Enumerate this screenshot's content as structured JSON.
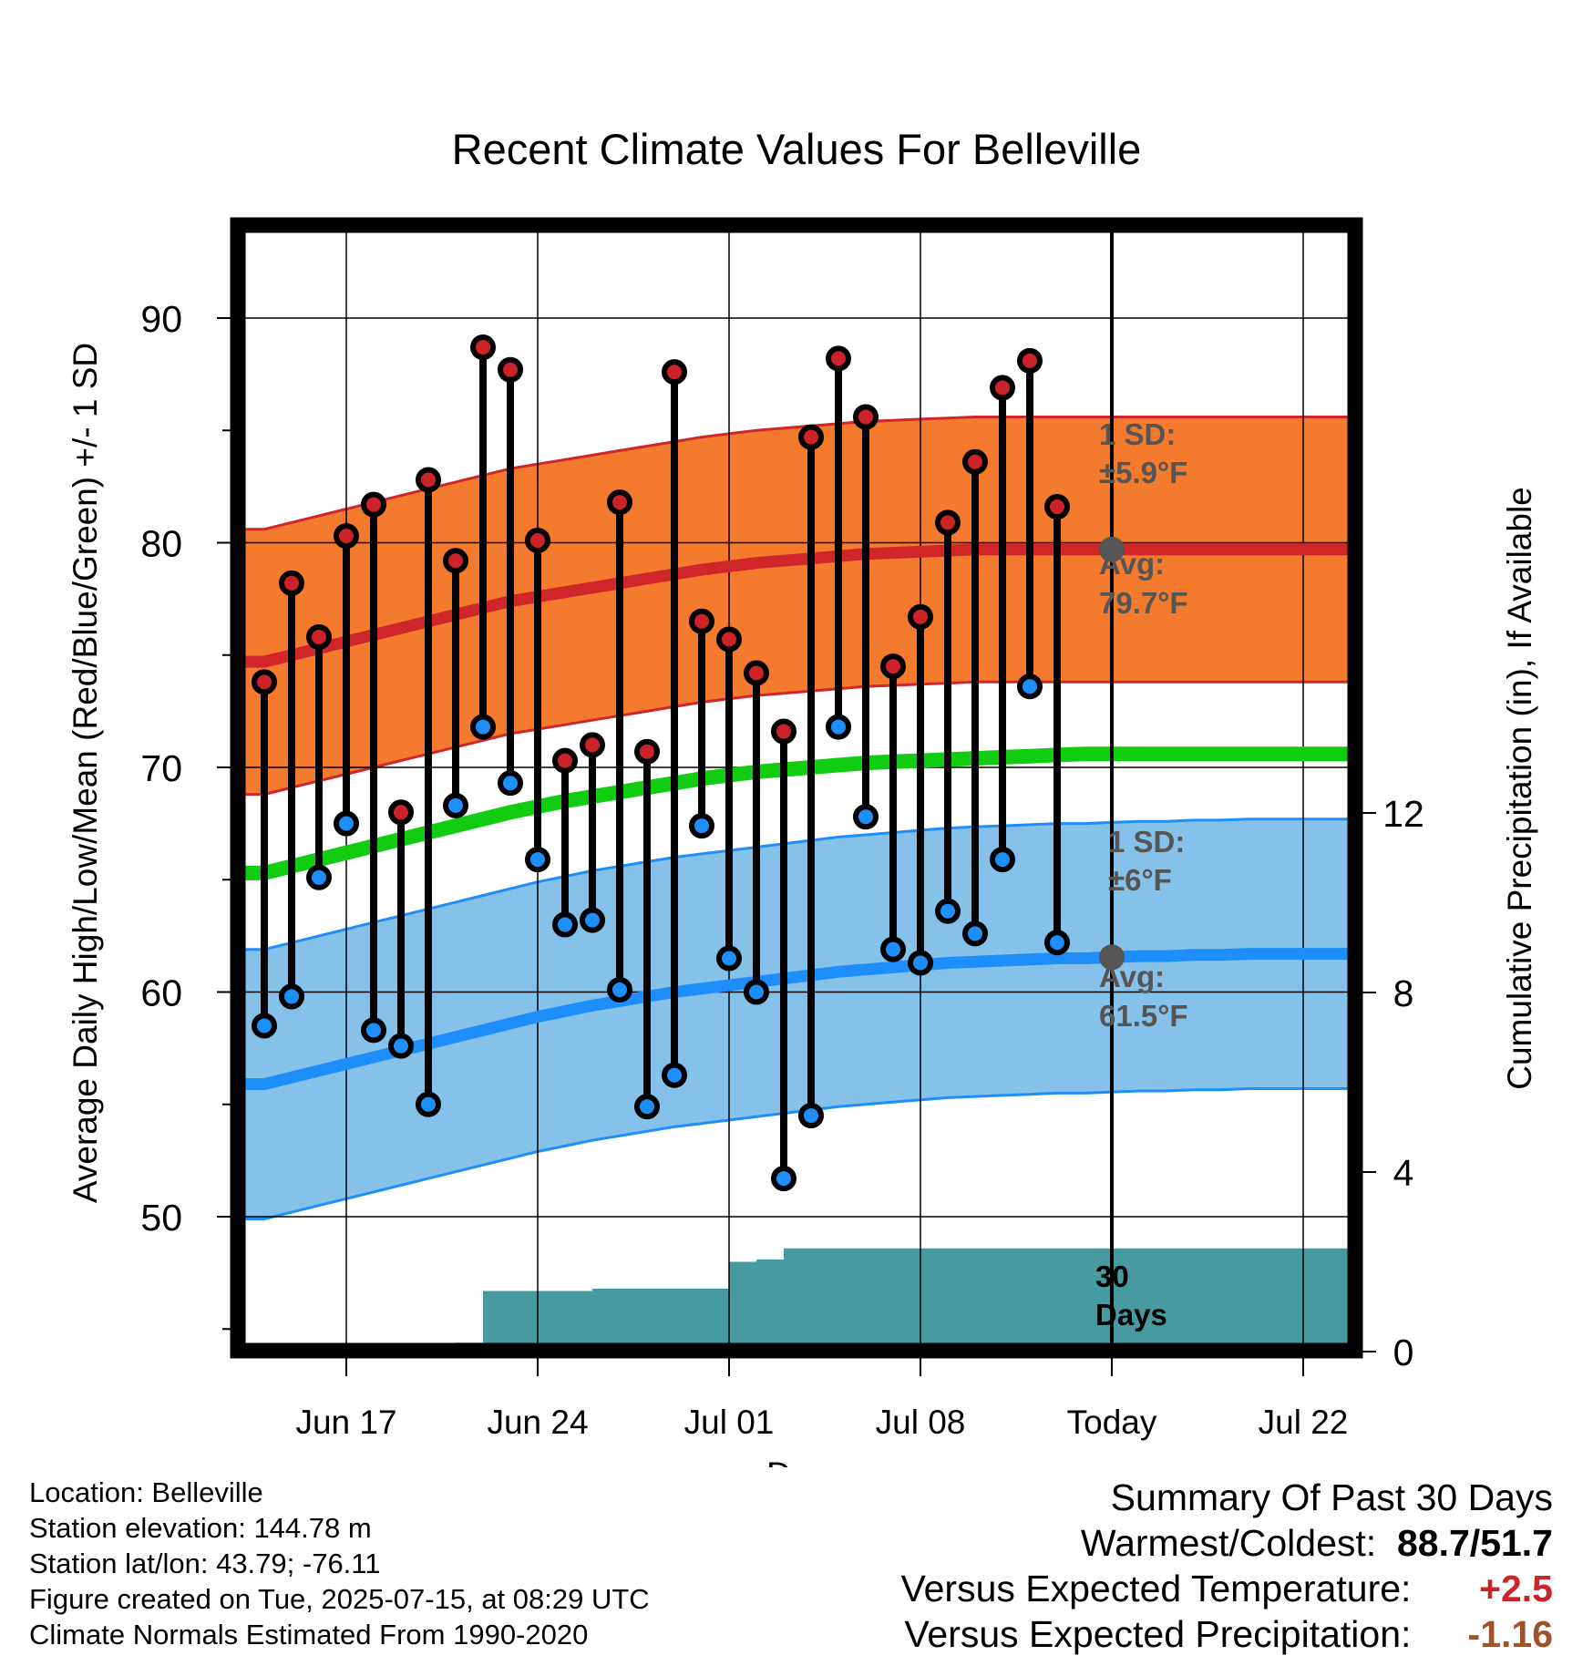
{
  "chart_data": {
    "type": "line",
    "title": "Recent Climate Values For Belleville",
    "xlabel": "Day",
    "ylabel": "Average Daily High/Low/Mean (Red/Blue/Green) +/- 1 SD",
    "y2label": "Cumulative Precipitation (in), If Available",
    "xticks": [
      "Jun 17",
      "Jun 24",
      "Jul 01",
      "Jul 08",
      "Today",
      "Jul 22"
    ],
    "yticks": [
      50,
      60,
      70,
      80,
      90
    ],
    "y2ticks": [
      0,
      4,
      8,
      12
    ],
    "ylim": [
      44,
      94
    ],
    "y2lim": [
      0,
      24
    ],
    "grid": true,
    "colors": {
      "high_band": "#f47a2e",
      "high_line": "#d0262a",
      "high_dot": "#cc2229",
      "low_band": "#85c1e9",
      "low_line": "#1e8ffa",
      "low_dot": "#1e8ffa",
      "mean_line": "#11cc11",
      "precip": "#479aa1",
      "marker": "#555555"
    },
    "days": [
      "Jun 14",
      "Jun 15",
      "Jun 16",
      "Jun 17",
      "Jun 18",
      "Jun 19",
      "Jun 20",
      "Jun 21",
      "Jun 22",
      "Jun 23",
      "Jun 24",
      "Jun 25",
      "Jun 26",
      "Jun 27",
      "Jun 28",
      "Jun 29",
      "Jun 30",
      "Jul 01",
      "Jul 02",
      "Jul 03",
      "Jul 04",
      "Jul 05",
      "Jul 06",
      "Jul 07",
      "Jul 08",
      "Jul 09",
      "Jul 10",
      "Jul 11",
      "Jul 12",
      "Jul 13",
      "Jul 14",
      "Jul 15",
      "Jul 16",
      "Jul 17",
      "Jul 18",
      "Jul 19",
      "Jul 20",
      "Jul 21",
      "Jul 22",
      "Jul 23",
      "Jul 24"
    ],
    "observed": {
      "start": "Jun 14",
      "high": [
        73.8,
        78.2,
        75.8,
        80.3,
        81.7,
        68.0,
        82.8,
        79.2,
        88.7,
        87.7,
        80.1,
        70.3,
        71.0,
        81.8,
        70.7,
        87.6,
        76.5,
        75.7,
        74.2,
        71.6,
        84.7,
        88.2,
        85.6,
        74.5,
        76.7,
        80.9,
        83.6,
        86.9,
        88.1,
        81.6
      ],
      "low": [
        58.5,
        59.8,
        65.1,
        67.5,
        58.3,
        57.6,
        55.0,
        68.3,
        71.8,
        69.3,
        65.9,
        63.0,
        63.2,
        60.1,
        54.9,
        56.3,
        67.4,
        61.5,
        60.0,
        51.7,
        54.5,
        71.8,
        67.8,
        61.9,
        61.3,
        63.6,
        62.6,
        65.9,
        73.6,
        62.2
      ]
    },
    "normals": {
      "high_avg": [
        74.7,
        75.0,
        75.3,
        75.6,
        75.9,
        76.2,
        76.5,
        76.8,
        77.1,
        77.4,
        77.6,
        77.8,
        78.0,
        78.2,
        78.4,
        78.6,
        78.8,
        78.95,
        79.1,
        79.2,
        79.3,
        79.4,
        79.5,
        79.55,
        79.6,
        79.65,
        79.7,
        79.7,
        79.7,
        79.7,
        79.7,
        79.7,
        79.7,
        79.7,
        79.7,
        79.7,
        79.7,
        79.7,
        79.7,
        79.7,
        79.7
      ],
      "high_sd": 5.9,
      "low_avg": [
        55.9,
        56.2,
        56.5,
        56.8,
        57.1,
        57.4,
        57.7,
        58.0,
        58.3,
        58.6,
        58.9,
        59.15,
        59.4,
        59.6,
        59.8,
        60.0,
        60.15,
        60.3,
        60.45,
        60.6,
        60.75,
        60.9,
        61.0,
        61.1,
        61.2,
        61.3,
        61.35,
        61.4,
        61.45,
        61.5,
        61.5,
        61.55,
        61.6,
        61.6,
        61.65,
        61.65,
        61.7,
        61.7,
        61.7,
        61.7,
        61.7
      ],
      "low_sd": 6.0,
      "mean_avg": [
        65.3,
        65.6,
        65.9,
        66.2,
        66.5,
        66.8,
        67.1,
        67.4,
        67.7,
        68.0,
        68.25,
        68.5,
        68.7,
        68.9,
        69.1,
        69.3,
        69.5,
        69.65,
        69.8,
        69.9,
        70.0,
        70.1,
        70.2,
        70.25,
        70.3,
        70.35,
        70.4,
        70.45,
        70.5,
        70.55,
        70.6,
        70.6,
        70.6,
        70.6,
        70.6,
        70.6,
        70.6,
        70.6,
        70.6,
        70.6,
        70.6
      ]
    },
    "precipitation": {
      "days": [
        "Jun 20",
        "Jun 21",
        "Jun 22",
        "Jun 26",
        "Jun 30",
        "Jul 01",
        "Jul 02",
        "Jul 03",
        "Jul 15",
        "Jul 24"
      ],
      "cumulative_in": [
        0.0,
        0.2,
        1.35,
        1.4,
        1.4,
        2.0,
        2.05,
        2.3,
        2.3,
        2.3
      ]
    },
    "annotations": {
      "high_sd_label": "1 SD:",
      "high_sd_value": "±5.9°F",
      "high_avg_label": "Avg:",
      "high_avg_value": "79.7°F",
      "low_sd_label": "1 SD:",
      "low_sd_value": "±6°F",
      "low_avg_label": "Avg:",
      "low_avg_value": "61.5°F",
      "period_line1": "30",
      "period_line2": "Days"
    }
  },
  "info": {
    "location": "Location: Belleville",
    "elevation": "Station elevation: 144.78 m",
    "latlon": "Station lat/lon: 43.79; -76.11",
    "created": "Figure created on Tue, 2025-07-15, at 08:29 UTC",
    "normals": "Climate Normals Estimated From 1990-2020"
  },
  "summary": {
    "title": "Summary Of Past 30 Days",
    "warm_cold_label": "Warmest/Coldest:",
    "warmest": "88.7",
    "coldest": "51.7",
    "temp_label": "Versus Expected Temperature:",
    "temp_value": "+2.5",
    "precip_label": "Versus Expected Precipitation:",
    "precip_value": "-1.16"
  }
}
